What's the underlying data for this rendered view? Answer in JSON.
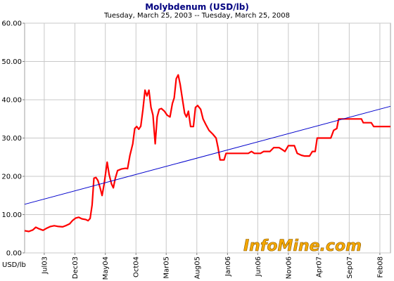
{
  "chart_data": {
    "type": "line",
    "title": "Molybdenum (USD/lb)",
    "subtitle": "Tuesday, March 25, 2003  --  Tuesday, March 25, 2008",
    "ylabel": "USD/lb",
    "xlim": [
      "2003-03-25",
      "2008-03-25"
    ],
    "ylim": [
      0,
      60
    ],
    "yticks": [
      "0.00",
      "10.00",
      "20.00",
      "30.00",
      "40.00",
      "50.00",
      "60.00"
    ],
    "xticks": [
      {
        "label": "Jul03",
        "date": "2003-07-01"
      },
      {
        "label": "Dec03",
        "date": "2003-12-01"
      },
      {
        "label": "May04",
        "date": "2004-05-01"
      },
      {
        "label": "Oct04",
        "date": "2004-10-01"
      },
      {
        "label": "Mar05",
        "date": "2005-03-01"
      },
      {
        "label": "Aug05",
        "date": "2005-08-01"
      },
      {
        "label": "Jan06",
        "date": "2006-01-01"
      },
      {
        "label": "Jun06",
        "date": "2006-06-01"
      },
      {
        "label": "Nov06",
        "date": "2006-11-01"
      },
      {
        "label": "Apr07",
        "date": "2007-04-01"
      },
      {
        "label": "Sep07",
        "date": "2007-09-01"
      },
      {
        "label": "Feb08",
        "date": "2008-02-01"
      }
    ],
    "grid": true,
    "watermark": "InfoMine.com",
    "series": [
      {
        "color": "#ff0000",
        "points": [
          [
            "2003-03-25",
            5.8
          ],
          [
            "2003-04-15",
            5.6
          ],
          [
            "2003-05-05",
            6.0
          ],
          [
            "2003-05-20",
            6.7
          ],
          [
            "2003-06-05",
            6.3
          ],
          [
            "2003-06-25",
            5.9
          ],
          [
            "2003-07-15",
            6.5
          ],
          [
            "2003-08-01",
            6.9
          ],
          [
            "2003-08-20",
            7.1
          ],
          [
            "2003-09-10",
            6.9
          ],
          [
            "2003-10-01",
            6.8
          ],
          [
            "2003-10-20",
            7.2
          ],
          [
            "2003-11-05",
            7.6
          ],
          [
            "2003-11-20",
            8.5
          ],
          [
            "2003-12-05",
            9.1
          ],
          [
            "2003-12-20",
            9.3
          ],
          [
            "2004-01-05",
            8.9
          ],
          [
            "2004-01-25",
            8.7
          ],
          [
            "2004-02-05",
            8.4
          ],
          [
            "2004-02-15",
            9.0
          ],
          [
            "2004-02-25",
            12.5
          ],
          [
            "2004-03-05",
            19.5
          ],
          [
            "2004-03-15",
            19.7
          ],
          [
            "2004-03-25",
            18.9
          ],
          [
            "2004-04-05",
            17.0
          ],
          [
            "2004-04-15",
            15.0
          ],
          [
            "2004-04-25",
            18.0
          ],
          [
            "2004-05-10",
            23.7
          ],
          [
            "2004-05-20",
            20.5
          ],
          [
            "2004-06-01",
            18.0
          ],
          [
            "2004-06-10",
            17.0
          ],
          [
            "2004-06-20",
            19.5
          ],
          [
            "2004-07-01",
            21.5
          ],
          [
            "2004-07-20",
            21.9
          ],
          [
            "2004-08-10",
            22.1
          ],
          [
            "2004-08-20",
            22.0
          ],
          [
            "2004-09-01",
            25.5
          ],
          [
            "2004-09-15",
            28.5
          ],
          [
            "2004-09-25",
            32.5
          ],
          [
            "2004-10-05",
            33.0
          ],
          [
            "2004-10-15",
            32.3
          ],
          [
            "2004-10-25",
            33.1
          ],
          [
            "2004-11-05",
            37.5
          ],
          [
            "2004-11-15",
            42.5
          ],
          [
            "2004-11-25",
            41.0
          ],
          [
            "2004-12-05",
            42.5
          ],
          [
            "2004-12-15",
            38.0
          ],
          [
            "2004-12-25",
            36.0
          ],
          [
            "2005-01-05",
            28.5
          ],
          [
            "2005-01-15",
            35.5
          ],
          [
            "2005-01-25",
            37.5
          ],
          [
            "2005-02-05",
            37.7
          ],
          [
            "2005-02-20",
            37.0
          ],
          [
            "2005-03-05",
            36.0
          ],
          [
            "2005-03-20",
            35.5
          ],
          [
            "2005-04-01",
            39.0
          ],
          [
            "2005-04-10",
            40.5
          ],
          [
            "2005-04-20",
            45.5
          ],
          [
            "2005-04-30",
            46.5
          ],
          [
            "2005-05-10",
            44.0
          ],
          [
            "2005-05-20",
            40.5
          ],
          [
            "2005-06-01",
            36.5
          ],
          [
            "2005-06-10",
            35.5
          ],
          [
            "2005-06-20",
            37.0
          ],
          [
            "2005-07-01",
            33.0
          ],
          [
            "2005-07-15",
            33.0
          ],
          [
            "2005-07-25",
            38.0
          ],
          [
            "2005-08-05",
            38.5
          ],
          [
            "2005-08-20",
            37.5
          ],
          [
            "2005-09-01",
            35.0
          ],
          [
            "2005-09-15",
            33.5
          ],
          [
            "2005-10-01",
            32.0
          ],
          [
            "2005-10-20",
            31.0
          ],
          [
            "2005-11-05",
            30.0
          ],
          [
            "2005-11-15",
            27.5
          ],
          [
            "2005-11-25",
            24.3
          ],
          [
            "2005-12-15",
            24.3
          ],
          [
            "2005-12-25",
            26.0
          ],
          [
            "2006-01-15",
            26.0
          ],
          [
            "2006-03-01",
            26.0
          ],
          [
            "2006-04-15",
            26.0
          ],
          [
            "2006-05-01",
            26.5
          ],
          [
            "2006-05-15",
            26.0
          ],
          [
            "2006-06-15",
            26.0
          ],
          [
            "2006-07-01",
            26.5
          ],
          [
            "2006-08-01",
            26.5
          ],
          [
            "2006-08-20",
            27.5
          ],
          [
            "2006-09-15",
            27.5
          ],
          [
            "2006-10-01",
            27.0
          ],
          [
            "2006-10-15",
            26.5
          ],
          [
            "2006-11-01",
            28.0
          ],
          [
            "2006-12-01",
            28.0
          ],
          [
            "2006-12-15",
            26.0
          ],
          [
            "2007-01-05",
            25.5
          ],
          [
            "2007-01-20",
            25.3
          ],
          [
            "2007-02-15",
            25.3
          ],
          [
            "2007-03-01",
            26.5
          ],
          [
            "2007-03-15",
            26.5
          ],
          [
            "2007-03-25",
            30.0
          ],
          [
            "2007-05-01",
            30.0
          ],
          [
            "2007-06-01",
            30.0
          ],
          [
            "2007-06-15",
            32.0
          ],
          [
            "2007-07-01",
            32.5
          ],
          [
            "2007-07-10",
            35.0
          ],
          [
            "2007-08-15",
            35.0
          ],
          [
            "2007-10-01",
            35.0
          ],
          [
            "2007-11-01",
            35.0
          ],
          [
            "2007-11-10",
            34.0
          ],
          [
            "2007-12-20",
            34.0
          ],
          [
            "2008-01-01",
            33.0
          ],
          [
            "2008-03-25",
            33.0
          ]
        ]
      },
      {
        "color": "#0000cc",
        "points": [
          [
            "2003-03-25",
            12.7
          ],
          [
            "2008-03-25",
            38.3
          ]
        ]
      }
    ]
  }
}
